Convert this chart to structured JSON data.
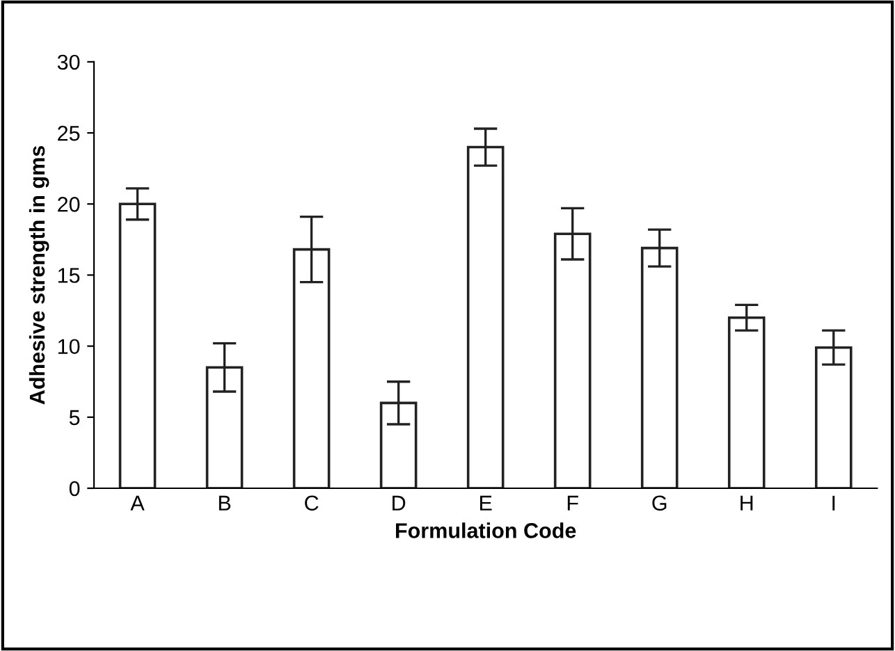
{
  "chart_data": {
    "type": "bar",
    "xlabel": "Formulation Code",
    "ylabel": "Adhesive strength in gms",
    "categories": [
      "A",
      "B",
      "C",
      "D",
      "E",
      "F",
      "G",
      "H",
      "I"
    ],
    "values": [
      20,
      8.5,
      16.8,
      6.0,
      24.0,
      17.9,
      16.9,
      12.0,
      9.9
    ],
    "errors": [
      1.1,
      1.7,
      2.3,
      1.5,
      1.3,
      1.8,
      1.3,
      0.9,
      1.2
    ],
    "color": "#ffffff",
    "ylim": [
      0,
      30
    ],
    "yticks": [
      0,
      5,
      10,
      15,
      20,
      25,
      30
    ],
    "grid": false
  }
}
